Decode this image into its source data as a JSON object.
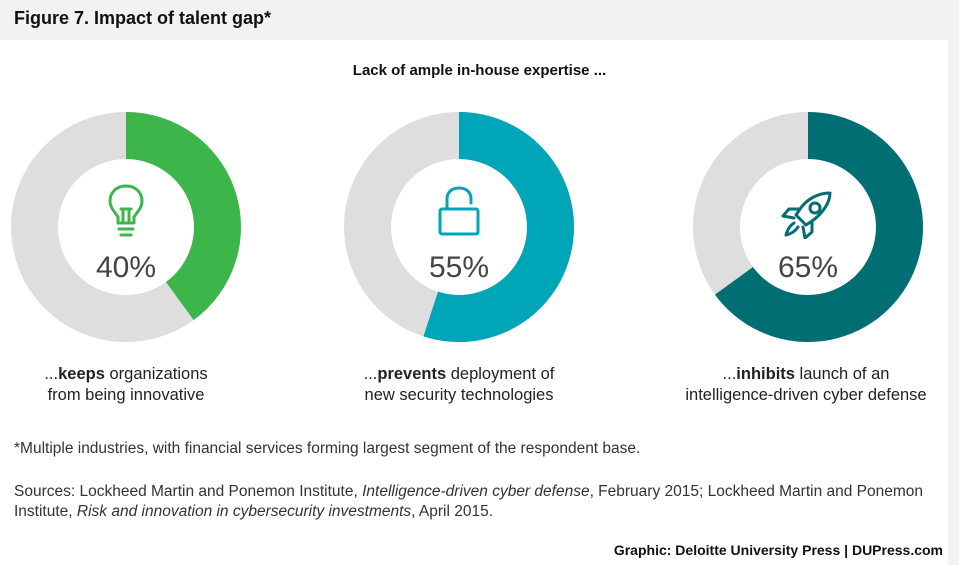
{
  "figure_title": "Figure 7. Impact of talent gap*",
  "chart_data": {
    "type": "pie",
    "title": "Lack of ample in-house expertise ...",
    "track_color": "#dedede",
    "series": [
      {
        "value": 40,
        "label": "40%",
        "color": "#3cb54a",
        "icon": "lightbulb-icon",
        "caption_prefix": "...",
        "caption_bold": "keeps",
        "caption_line1_rest": " organizations",
        "caption_line2": "from being innovative"
      },
      {
        "value": 55,
        "label": "55%",
        "color": "#00a5b8",
        "icon": "padlock-icon",
        "caption_prefix": "...",
        "caption_bold": "prevents",
        "caption_line1_rest": " deployment of",
        "caption_line2": "new security technologies"
      },
      {
        "value": 65,
        "label": "65%",
        "color": "#006e72",
        "icon": "rocket-icon",
        "caption_prefix": "...",
        "caption_bold": "inhibits",
        "caption_line1_rest": " launch of an",
        "caption_line2": "intelligence-driven cyber defense"
      }
    ]
  },
  "footnote": "*Multiple industries, with financial services forming largest segment of the respondent base.",
  "sources": {
    "prefix": "Sources: Lockheed Martin and Ponemon Institute, ",
    "title1": "Intelligence-driven cyber defense",
    "middle": ", February 2015; Lockheed Martin and Ponemon Institute, ",
    "title2": "Risk and innovation in cybersecurity investments",
    "suffix": ", April 2015."
  },
  "credit": "Graphic: Deloitte University Press  |  DUPress.com"
}
